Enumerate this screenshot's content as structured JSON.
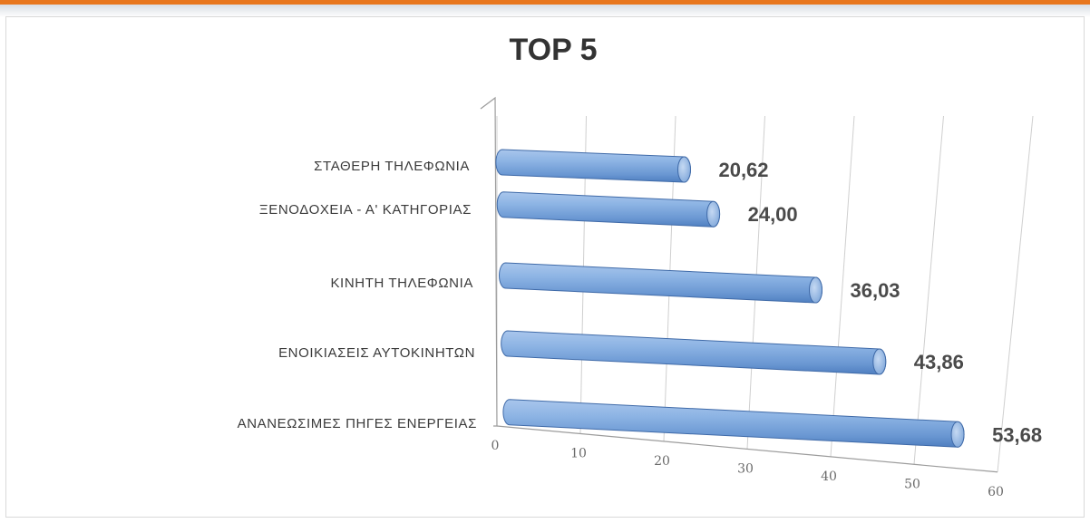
{
  "chart_data": {
    "type": "bar",
    "orientation": "horizontal",
    "title": "TOP 5",
    "categories": [
      "ΣΤΑΘΕΡΗ ΤΗΛΕΦΩΝΙΑ",
      "ΞΕΝΟΔΟΧΕΙΑ - Α' ΚΑΤΗΓΟΡΙΑΣ",
      "ΚΙΝΗΤΗ ΤΗΛΕΦΩΝΙΑ",
      "ΕΝΟΙΚΙΑΣΕΙΣ ΑΥΤΟΚΙΝΗΤΩΝ",
      "ΑΝΑΝΕΩΣΙΜΕΣ ΠΗΓΕΣ ΕΝΕΡΓΕΙΑΣ"
    ],
    "values": [
      20.62,
      24.0,
      36.03,
      43.86,
      53.68
    ],
    "value_labels": [
      "20,62",
      "24,00",
      "36,03",
      "43,86",
      "53,68"
    ],
    "xlim": [
      0,
      60
    ],
    "xticks": [
      0,
      10,
      20,
      30,
      40,
      50,
      60
    ],
    "xtick_labels": [
      "0",
      "10",
      "20",
      "30",
      "40",
      "50",
      "60"
    ],
    "grid": true,
    "legend": "none",
    "bar_color": "#7ea6d9",
    "style": "3d-cylinder"
  }
}
